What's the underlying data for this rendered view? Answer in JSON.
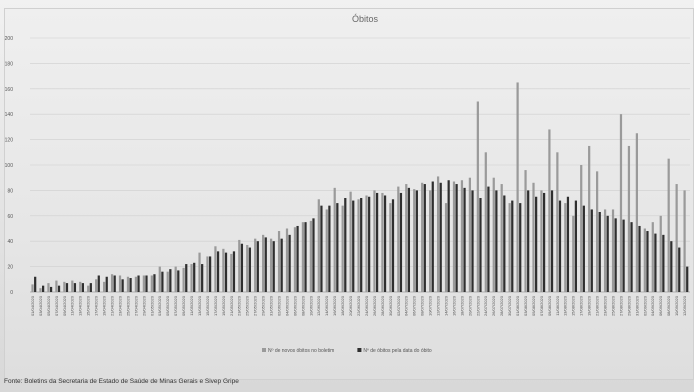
{
  "chart_data": {
    "type": "bar",
    "title": "Óbitos",
    "ylim": [
      0,
      200
    ],
    "yticks": [
      0,
      20,
      40,
      60,
      80,
      100,
      120,
      140,
      160,
      180,
      200
    ],
    "grid": true,
    "legend_position": "bottom",
    "categories": [
      "01/04/2020",
      "03/04/2020",
      "05/04/2020",
      "07/04/2020",
      "09/04/2020",
      "11/04/2020",
      "13/04/2020",
      "15/04/2020",
      "17/04/2020",
      "19/04/2020",
      "21/04/2020",
      "23/04/2020",
      "25/04/2020",
      "27/04/2020",
      "29/04/2020",
      "01/05/2020",
      "03/05/2020",
      "05/05/2020",
      "07/05/2020",
      "09/05/2020",
      "11/05/2020",
      "13/05/2020",
      "15/05/2020",
      "17/05/2020",
      "19/05/2020",
      "21/05/2020",
      "23/05/2020",
      "25/05/2020",
      "27/05/2020",
      "29/05/2020",
      "31/05/2020",
      "02/06/2020",
      "04/06/2020",
      "06/06/2020",
      "08/06/2020",
      "10/06/2020",
      "12/06/2020",
      "14/06/2020",
      "16/06/2020",
      "18/06/2020",
      "20/06/2020",
      "22/06/2020",
      "24/06/2020",
      "26/06/2020",
      "28/06/2020",
      "30/06/2020",
      "02/07/2020",
      "04/07/2020",
      "06/07/2020",
      "08/07/2020",
      "10/07/2020",
      "12/07/2020",
      "14/07/2020",
      "16/07/2020",
      "18/07/2020",
      "20/07/2020",
      "22/07/2020",
      "24/07/2020",
      "26/07/2020",
      "28/07/2020",
      "30/07/2020",
      "01/08/2020",
      "03/08/2020",
      "05/08/2020",
      "07/08/2020",
      "09/08/2020",
      "11/08/2020",
      "13/08/2020",
      "15/08/2020",
      "17/08/2020",
      "19/08/2020",
      "21/08/2020",
      "23/08/2020",
      "25/08/2020",
      "27/08/2020",
      "29/08/2020",
      "31/08/2020",
      "02/09/2020",
      "04/09/2020",
      "06/09/2020",
      "08/09/2020",
      "10/09/2020",
      "12/09/2020"
    ],
    "series": [
      {
        "name": "Nº de novos óbitos no boletim",
        "color": "#9a9a9a",
        "values": [
          6,
          3,
          7,
          9,
          8,
          9,
          8,
          5,
          10,
          8,
          14,
          13,
          12,
          12,
          13,
          13,
          20,
          16,
          20,
          19,
          22,
          31,
          28,
          36,
          34,
          30,
          41,
          37,
          42,
          45,
          42,
          48,
          50,
          51,
          55,
          56,
          73,
          65,
          82,
          68,
          79,
          73,
          76,
          80,
          78,
          70,
          83,
          85,
          81,
          86,
          80,
          91,
          70,
          87,
          88,
          90,
          150,
          110,
          90,
          85,
          70,
          165,
          96,
          86,
          80,
          128,
          110,
          70,
          60,
          100,
          115,
          95,
          65,
          65,
          140,
          115,
          125,
          50,
          55,
          60,
          105,
          85,
          80
        ]
      },
      {
        "name": "Nº de óbitos pela data do óbito",
        "color": "#2f2f2f",
        "values": [
          12,
          5,
          4,
          5,
          7,
          7,
          7,
          7,
          13,
          12,
          13,
          10,
          11,
          13,
          13,
          14,
          16,
          18,
          17,
          22,
          23,
          22,
          28,
          32,
          31,
          32,
          38,
          35,
          40,
          43,
          40,
          42,
          45,
          52,
          55,
          58,
          68,
          68,
          70,
          74,
          72,
          74,
          75,
          78,
          76,
          73,
          78,
          82,
          80,
          85,
          87,
          86,
          88,
          85,
          82,
          80,
          74,
          83,
          80,
          76,
          72,
          70,
          80,
          75,
          78,
          80,
          72,
          75,
          72,
          68,
          65,
          63,
          60,
          58,
          57,
          55,
          52,
          48,
          46,
          45,
          40,
          35,
          20
        ]
      }
    ]
  },
  "source_note": "Fonte: Boletins da Secretaria de Estado de Saúde de Minas Gerais e Sivep Gripe"
}
